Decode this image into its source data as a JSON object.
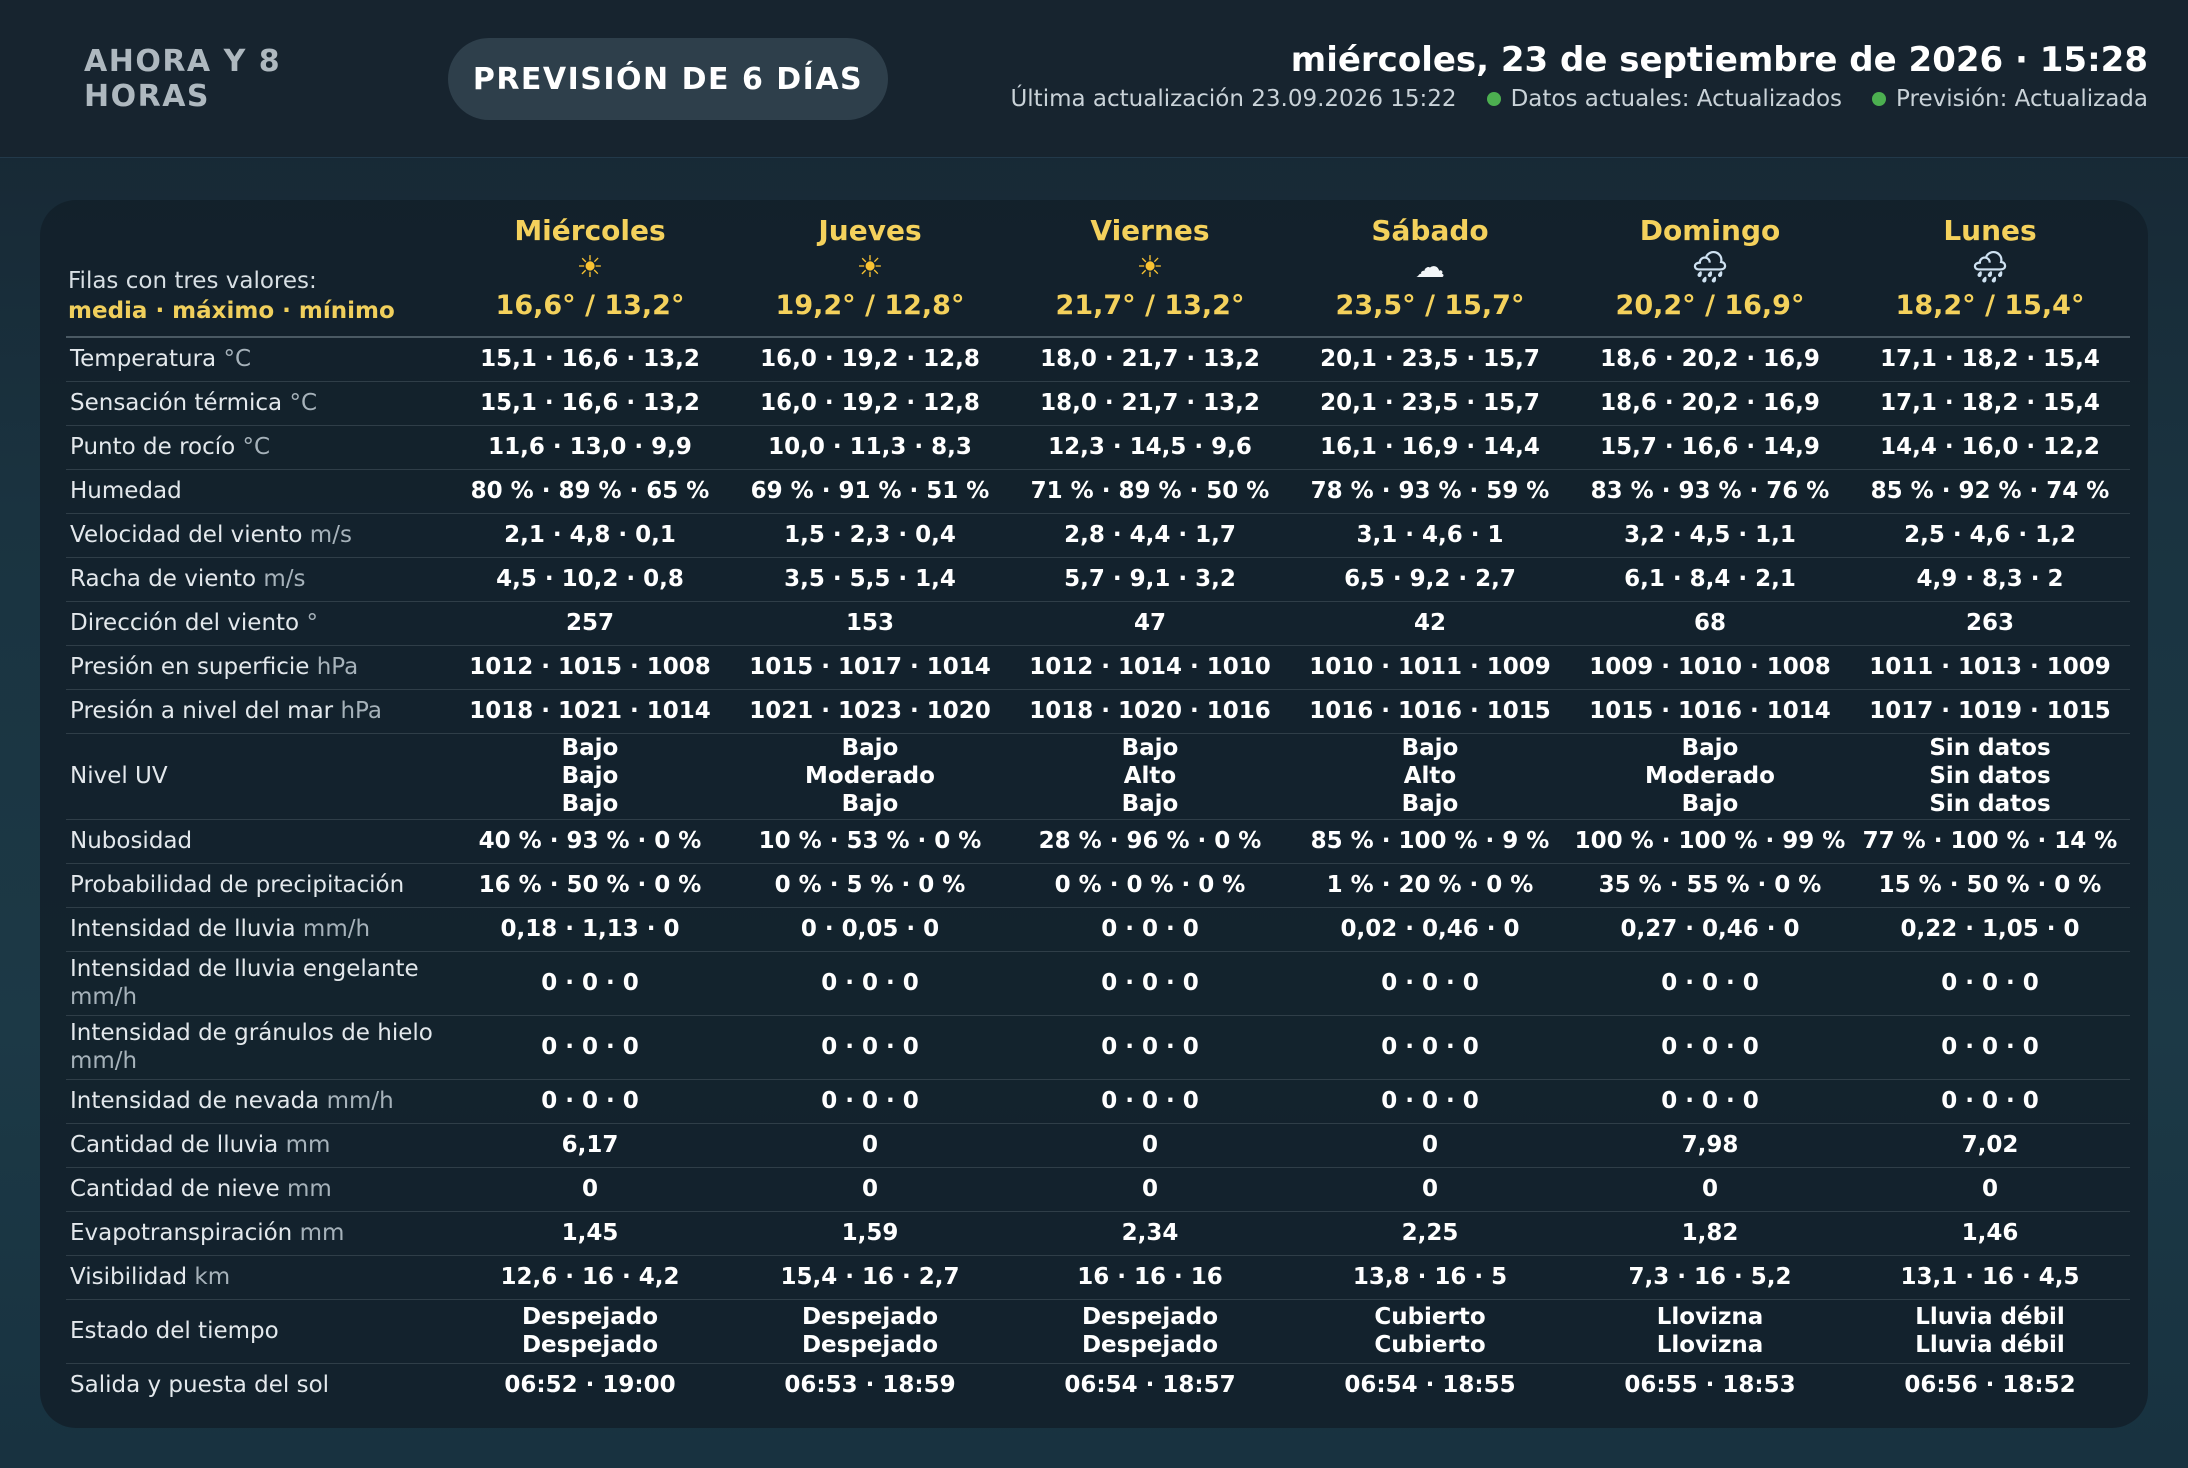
{
  "tabs": {
    "now": "AHORA Y 8 HORAS",
    "forecast": "PREVISIÓN DE 6 DÍAS"
  },
  "header": {
    "datetime": "miércoles, 23 de septiembre de 2026 · 15:28",
    "last_update": "Última actualización 23.09.2026 15:22",
    "status_current": "Datos actuales: Actualizados",
    "status_forecast": "Previsión: Actualizada",
    "status_color": "#4caf50"
  },
  "legend": {
    "line1": "Filas con tres valores:",
    "line2": "media · máximo · mínimo"
  },
  "colors": {
    "accent": "#f4d15c",
    "active_tab_bg": "#2e3f4b",
    "ok": "#4caf50"
  },
  "days": [
    {
      "name": "Miércoles",
      "icon": "sun-icon",
      "glyph": "☀",
      "temps": "16,6° / 13,2°"
    },
    {
      "name": "Jueves",
      "icon": "sun-icon",
      "glyph": "☀",
      "temps": "19,2° / 12,8°"
    },
    {
      "name": "Viernes",
      "icon": "sun-icon",
      "glyph": "☀",
      "temps": "21,7° / 13,2°"
    },
    {
      "name": "Sábado",
      "icon": "cloud-icon",
      "glyph": "☁",
      "temps": "23,5° / 15,7°"
    },
    {
      "name": "Domingo",
      "icon": "rain-cloud-icon",
      "glyph": "🌧",
      "temps": "20,2° / 16,9°"
    },
    {
      "name": "Lunes",
      "icon": "rain-cloud-icon",
      "glyph": "🌧",
      "temps": "18,2° / 15,4°"
    }
  ],
  "rows": [
    {
      "label": "Temperatura",
      "unit": "°C",
      "values": [
        "15,1 · 16,6 · 13,2",
        "16,0 · 19,2 · 12,8",
        "18,0 · 21,7 · 13,2",
        "20,1 · 23,5 · 15,7",
        "18,6 · 20,2 · 16,9",
        "17,1 · 18,2 · 15,4"
      ]
    },
    {
      "label": "Sensación térmica",
      "unit": "°C",
      "values": [
        "15,1 · 16,6 · 13,2",
        "16,0 · 19,2 · 12,8",
        "18,0 · 21,7 · 13,2",
        "20,1 · 23,5 · 15,7",
        "18,6 · 20,2 · 16,9",
        "17,1 · 18,2 · 15,4"
      ]
    },
    {
      "label": "Punto de rocío",
      "unit": "°C",
      "values": [
        "11,6 · 13,0 · 9,9",
        "10,0 · 11,3 · 8,3",
        "12,3 · 14,5 · 9,6",
        "16,1 · 16,9 · 14,4",
        "15,7 · 16,6 · 14,9",
        "14,4 · 16,0 · 12,2"
      ]
    },
    {
      "label": "Humedad",
      "unit": "",
      "values": [
        "80 % · 89 % · 65 %",
        "69 % · 91 % · 51 %",
        "71 % · 89 % · 50 %",
        "78 % · 93 % · 59 %",
        "83 % · 93 % · 76 %",
        "85 % · 92 % · 74 %"
      ]
    },
    {
      "label": "Velocidad del viento",
      "unit": "m/s",
      "values": [
        "2,1 · 4,8 · 0,1",
        "1,5 · 2,3 · 0,4",
        "2,8 · 4,4 · 1,7",
        "3,1 · 4,6 · 1",
        "3,2 · 4,5 · 1,1",
        "2,5 · 4,6 · 1,2"
      ]
    },
    {
      "label": "Racha de viento",
      "unit": "m/s",
      "values": [
        "4,5 · 10,2 · 0,8",
        "3,5 · 5,5 · 1,4",
        "5,7 · 9,1 · 3,2",
        "6,5 · 9,2 · 2,7",
        "6,1 · 8,4 · 2,1",
        "4,9 · 8,3 · 2"
      ]
    },
    {
      "label": "Dirección del viento",
      "unit": "°",
      "values": [
        "257",
        "153",
        "47",
        "42",
        "68",
        "263"
      ]
    },
    {
      "label": "Presión en superficie",
      "unit": "hPa",
      "values": [
        "1012 · 1015 · 1008",
        "1015 · 1017 · 1014",
        "1012 · 1014 · 1010",
        "1010 · 1011 · 1009",
        "1009 · 1010 · 1008",
        "1011 · 1013 · 1009"
      ]
    },
    {
      "label": "Presión a nivel del mar",
      "unit": "hPa",
      "values": [
        "1018 · 1021 · 1014",
        "1021 · 1023 · 1020",
        "1018 · 1020 · 1016",
        "1016 · 1016 · 1015",
        "1015 · 1016 · 1014",
        "1017 · 1019 · 1015"
      ]
    },
    {
      "label": "Nivel UV",
      "unit": "",
      "multi": 3,
      "values": [
        [
          "Bajo",
          "Bajo",
          "Bajo"
        ],
        [
          "Bajo",
          "Moderado",
          "Bajo"
        ],
        [
          "Bajo",
          "Alto",
          "Bajo"
        ],
        [
          "Bajo",
          "Alto",
          "Bajo"
        ],
        [
          "Bajo",
          "Moderado",
          "Bajo"
        ],
        [
          "Sin datos",
          "Sin datos",
          "Sin datos"
        ]
      ]
    },
    {
      "label": "Nubosidad",
      "unit": "",
      "values": [
        "40 % · 93 % · 0 %",
        "10 % · 53 % · 0 %",
        "28 % · 96 % · 0 %",
        "85 % · 100 % · 9 %",
        "100 % · 100 % · 99 %",
        "77 % · 100 % · 14 %"
      ]
    },
    {
      "label": "Probabilidad de precipitación",
      "unit": "",
      "values": [
        "16 % · 50 % · 0 %",
        "0 % · 5 % · 0 %",
        "0 % · 0 % · 0 %",
        "1 % · 20 % · 0 %",
        "35 % · 55 % · 0 %",
        "15 % · 50 % · 0 %"
      ]
    },
    {
      "label": "Intensidad de lluvia",
      "unit": "mm/h",
      "values": [
        "0,18 · 1,13 · 0",
        "0 · 0,05 · 0",
        "0 · 0 · 0",
        "0,02 · 0,46 · 0",
        "0,27 · 0,46 · 0",
        "0,22 · 1,05 · 0"
      ]
    },
    {
      "label": "Intensidad de lluvia engelante",
      "unit": "mm/h",
      "tall": true,
      "values": [
        "0 · 0 · 0",
        "0 · 0 · 0",
        "0 · 0 · 0",
        "0 · 0 · 0",
        "0 · 0 · 0",
        "0 · 0 · 0"
      ]
    },
    {
      "label": "Intensidad de gránulos de hielo",
      "unit": "mm/h",
      "tall": true,
      "values": [
        "0 · 0 · 0",
        "0 · 0 · 0",
        "0 · 0 · 0",
        "0 · 0 · 0",
        "0 · 0 · 0",
        "0 · 0 · 0"
      ]
    },
    {
      "label": "Intensidad de nevada",
      "unit": "mm/h",
      "values": [
        "0 · 0 · 0",
        "0 · 0 · 0",
        "0 · 0 · 0",
        "0 · 0 · 0",
        "0 · 0 · 0",
        "0 · 0 · 0"
      ]
    },
    {
      "label": "Cantidad de lluvia",
      "unit": "mm",
      "values": [
        "6,17",
        "0",
        "0",
        "0",
        "7,98",
        "7,02"
      ]
    },
    {
      "label": "Cantidad de nieve",
      "unit": "mm",
      "values": [
        "0",
        "0",
        "0",
        "0",
        "0",
        "0"
      ]
    },
    {
      "label": "Evapotranspiración",
      "unit": "mm",
      "values": [
        "1,45",
        "1,59",
        "2,34",
        "2,25",
        "1,82",
        "1,46"
      ]
    },
    {
      "label": "Visibilidad",
      "unit": "km",
      "values": [
        "12,6 · 16 · 4,2",
        "15,4 · 16 · 2,7",
        "16 · 16 · 16",
        "13,8 · 16 · 5",
        "7,3 · 16 · 5,2",
        "13,1 · 16 · 4,5"
      ]
    },
    {
      "label": "Estado del tiempo",
      "unit": "",
      "multi": 2,
      "values": [
        [
          "Despejado",
          "Despejado"
        ],
        [
          "Despejado",
          "Despejado"
        ],
        [
          "Despejado",
          "Despejado"
        ],
        [
          "Cubierto",
          "Cubierto"
        ],
        [
          "Llovizna",
          "Llovizna"
        ],
        [
          "Lluvia débil",
          "Lluvia débil"
        ]
      ]
    },
    {
      "label": "Salida y puesta del sol",
      "unit": "",
      "values": [
        "06:52 · 19:00",
        "06:53 · 18:59",
        "06:54 · 18:57",
        "06:54 · 18:55",
        "06:55 · 18:53",
        "06:56 · 18:52"
      ]
    }
  ]
}
